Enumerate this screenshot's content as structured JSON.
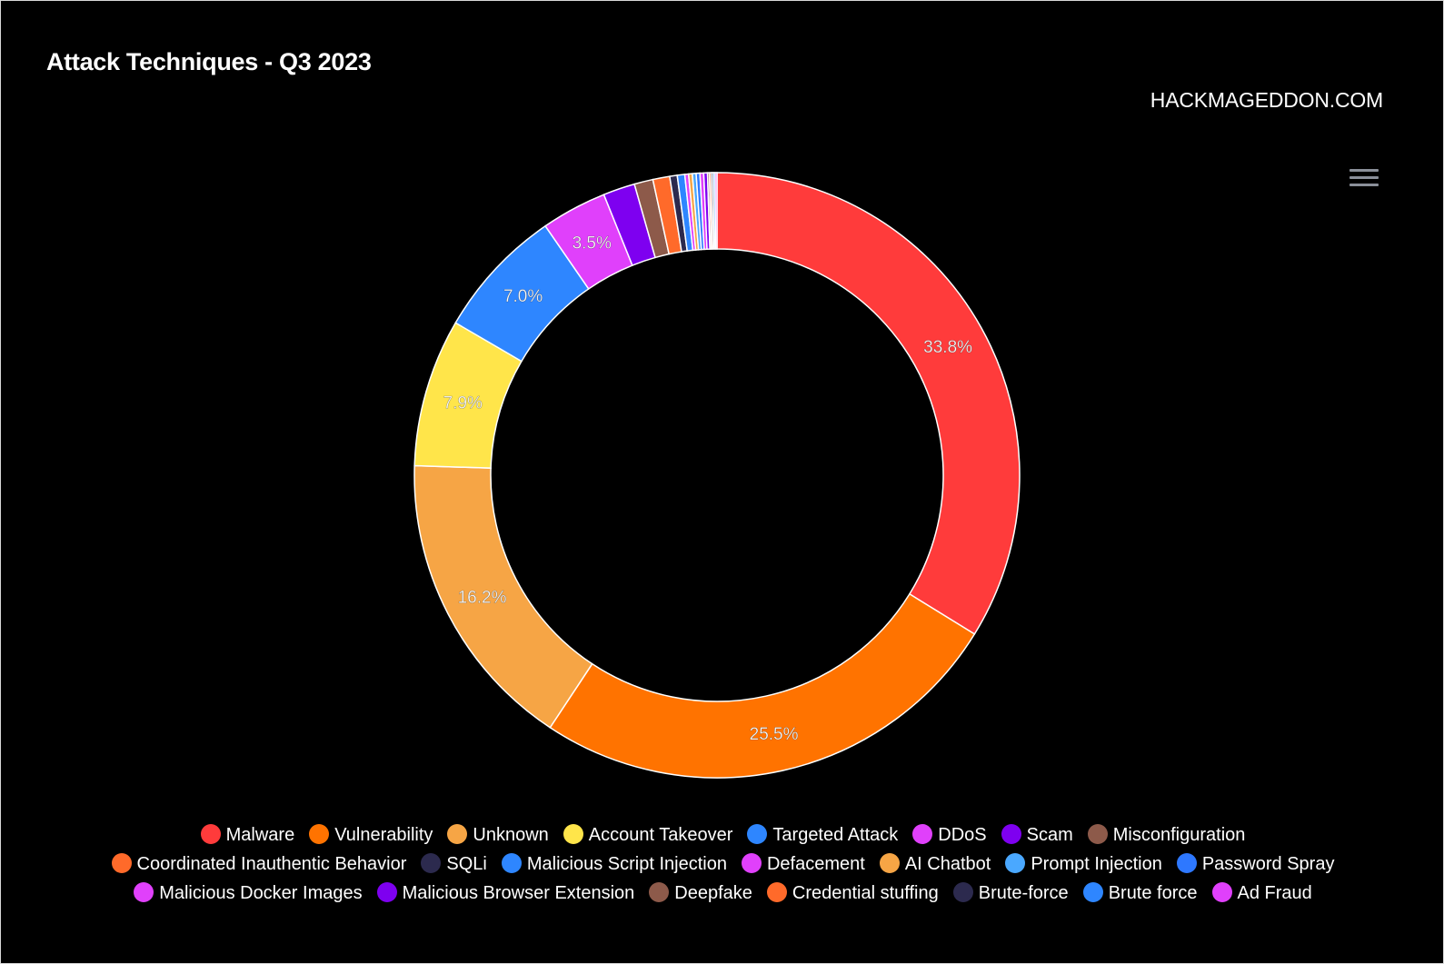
{
  "title": "Attack Techniques - Q3 2023",
  "credit": "HACKMAGEDDON.COM",
  "menu": {
    "icon": "hamburger-menu-icon"
  },
  "chart_data": {
    "type": "pie",
    "style": "donut",
    "legend_position": "bottom",
    "slices": [
      {
        "name": "Malware",
        "value": 33.8,
        "label": "33.8%",
        "color": "#ff3b3b"
      },
      {
        "name": "Vulnerability",
        "value": 25.5,
        "label": "25.5%",
        "color": "#ff7300"
      },
      {
        "name": "Unknown",
        "value": 16.2,
        "label": "16.2%",
        "color": "#f6a545"
      },
      {
        "name": "Account Takeover",
        "value": 7.9,
        "label": "7.9%",
        "color": "#ffe54a"
      },
      {
        "name": "Targeted Attack",
        "value": 7.0,
        "label": "7.0%",
        "color": "#2e86ff"
      },
      {
        "name": "DDoS",
        "value": 3.5,
        "label": "3.5%",
        "color": "#e040fb"
      },
      {
        "name": "Scam",
        "value": 1.7,
        "label": "",
        "color": "#7e00f0"
      },
      {
        "name": "Misconfiguration",
        "value": 1.0,
        "label": "",
        "color": "#8d5a4a"
      },
      {
        "name": "Coordinated Inauthentic Behavior",
        "value": 0.9,
        "label": "",
        "color": "#ff6a2a"
      },
      {
        "name": "SQLi",
        "value": 0.4,
        "label": "",
        "color": "#2c2a4e"
      },
      {
        "name": "Malicious Script Injection",
        "value": 0.4,
        "label": "",
        "color": "#2e86ff"
      },
      {
        "name": "Defacement",
        "value": 0.2,
        "label": "",
        "color": "#e040fb"
      },
      {
        "name": "AI Chatbot",
        "value": 0.2,
        "label": "",
        "color": "#f6a545"
      },
      {
        "name": "Prompt Injection",
        "value": 0.2,
        "label": "",
        "color": "#4aa8ff"
      },
      {
        "name": "Password Spray",
        "value": 0.2,
        "label": "",
        "color": "#2e78ff"
      },
      {
        "name": "Malicious Docker Images",
        "value": 0.2,
        "label": "",
        "color": "#e040fb"
      },
      {
        "name": "Malicious Browser Extension",
        "value": 0.2,
        "label": "",
        "color": "#7e00f0"
      },
      {
        "name": "Deepfake",
        "value": 0.1,
        "label": "",
        "color": "#8d5a4a"
      },
      {
        "name": "Credential stuffing",
        "value": 0.1,
        "label": "",
        "color": "#ff6a2a"
      },
      {
        "name": "Brute-force",
        "value": 0.1,
        "label": "",
        "color": "#2c2a4e"
      },
      {
        "name": "Brute force",
        "value": 0.1,
        "label": "",
        "color": "#2e86ff"
      },
      {
        "name": "Ad Fraud",
        "value": 0.1,
        "label": "",
        "color": "#e040fb"
      }
    ]
  }
}
